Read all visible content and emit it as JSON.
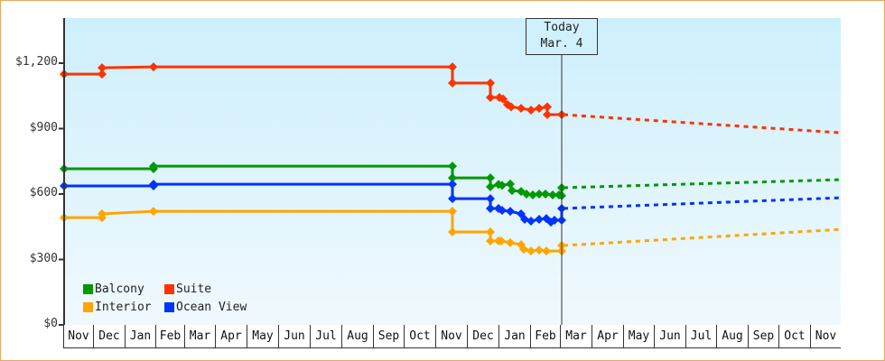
{
  "chart_data": {
    "type": "line",
    "title": "",
    "xlabel": "",
    "ylabel": "",
    "ylim": [
      0,
      1400
    ],
    "y_ticks": [
      "$0",
      "$300",
      "$600",
      "$900",
      "$1,200"
    ],
    "y_tick_values": [
      0,
      300,
      600,
      900,
      1200
    ],
    "x_ticks": [
      "Nov",
      "Dec",
      "Jan",
      "Feb",
      "Mar",
      "Apr",
      "May",
      "Jun",
      "Jul",
      "Aug",
      "Sep",
      "Oct",
      "Nov",
      "Dec",
      "Jan",
      "Feb",
      "Mar",
      "Apr",
      "May",
      "Jun",
      "Jul",
      "Aug",
      "Sep",
      "Oct",
      "Nov"
    ],
    "annotation": {
      "line1": "Today",
      "line2": "Mar. 4"
    },
    "legend_position": "lower-left",
    "grid": false,
    "series": [
      {
        "name": "Balcony",
        "color": "#009900",
        "historical": [
          [
            71,
            716
          ],
          [
            170,
            716
          ],
          [
            170,
            728
          ],
          [
            501,
            728
          ],
          [
            501,
            674
          ],
          [
            543,
            674
          ],
          [
            543,
            633
          ],
          [
            552,
            644
          ],
          [
            556,
            640
          ],
          [
            565,
            646
          ],
          [
            567,
            616
          ],
          [
            577,
            612
          ],
          [
            583,
            600
          ],
          [
            590,
            596
          ],
          [
            597,
            600
          ],
          [
            604,
            600
          ],
          [
            612,
            596
          ],
          [
            619,
            596
          ],
          [
            622,
            592
          ],
          [
            622,
            629
          ]
        ],
        "projected": [
          [
            622,
            629
          ],
          [
            931,
            666
          ]
        ]
      },
      {
        "name": "Suite",
        "color": "#ff3300",
        "historical": [
          [
            71,
            1150
          ],
          [
            113,
            1150
          ],
          [
            113,
            1179
          ],
          [
            170,
            1183
          ],
          [
            501,
            1183
          ],
          [
            501,
            1109
          ],
          [
            543,
            1109
          ],
          [
            543,
            1043
          ],
          [
            553,
            1043
          ],
          [
            557,
            1036
          ],
          [
            562,
            1010
          ],
          [
            566,
            1000
          ],
          [
            577,
            993
          ],
          [
            588,
            985
          ],
          [
            597,
            993
          ],
          [
            606,
            1000
          ],
          [
            606,
            964
          ],
          [
            622,
            964
          ]
        ],
        "projected": [
          [
            622,
            964
          ],
          [
            931,
            881
          ]
        ]
      },
      {
        "name": "Interior",
        "color": "#ffa500",
        "historical": [
          [
            71,
            492
          ],
          [
            113,
            492
          ],
          [
            113,
            509
          ],
          [
            170,
            521
          ],
          [
            501,
            521
          ],
          [
            501,
            426
          ],
          [
            543,
            426
          ],
          [
            543,
            385
          ],
          [
            552,
            385
          ],
          [
            555,
            385
          ],
          [
            565,
            377
          ],
          [
            577,
            368
          ],
          [
            580,
            347
          ],
          [
            588,
            339
          ],
          [
            597,
            343
          ],
          [
            605,
            339
          ],
          [
            622,
            339
          ],
          [
            622,
            364
          ]
        ],
        "projected": [
          [
            622,
            364
          ],
          [
            931,
            438
          ]
        ]
      },
      {
        "name": "Ocean View",
        "color": "#0033ff",
        "historical": [
          [
            71,
            637
          ],
          [
            170,
            637
          ],
          [
            170,
            645
          ],
          [
            501,
            645
          ],
          [
            501,
            579
          ],
          [
            543,
            579
          ],
          [
            543,
            534
          ],
          [
            552,
            534
          ],
          [
            556,
            525
          ],
          [
            565,
            521
          ],
          [
            577,
            509
          ],
          [
            581,
            484
          ],
          [
            588,
            476
          ],
          [
            597,
            484
          ],
          [
            605,
            488
          ],
          [
            610,
            471
          ],
          [
            614,
            480
          ],
          [
            622,
            480
          ],
          [
            622,
            534
          ]
        ],
        "projected": [
          [
            622,
            534
          ],
          [
            931,
            583
          ]
        ]
      }
    ]
  }
}
